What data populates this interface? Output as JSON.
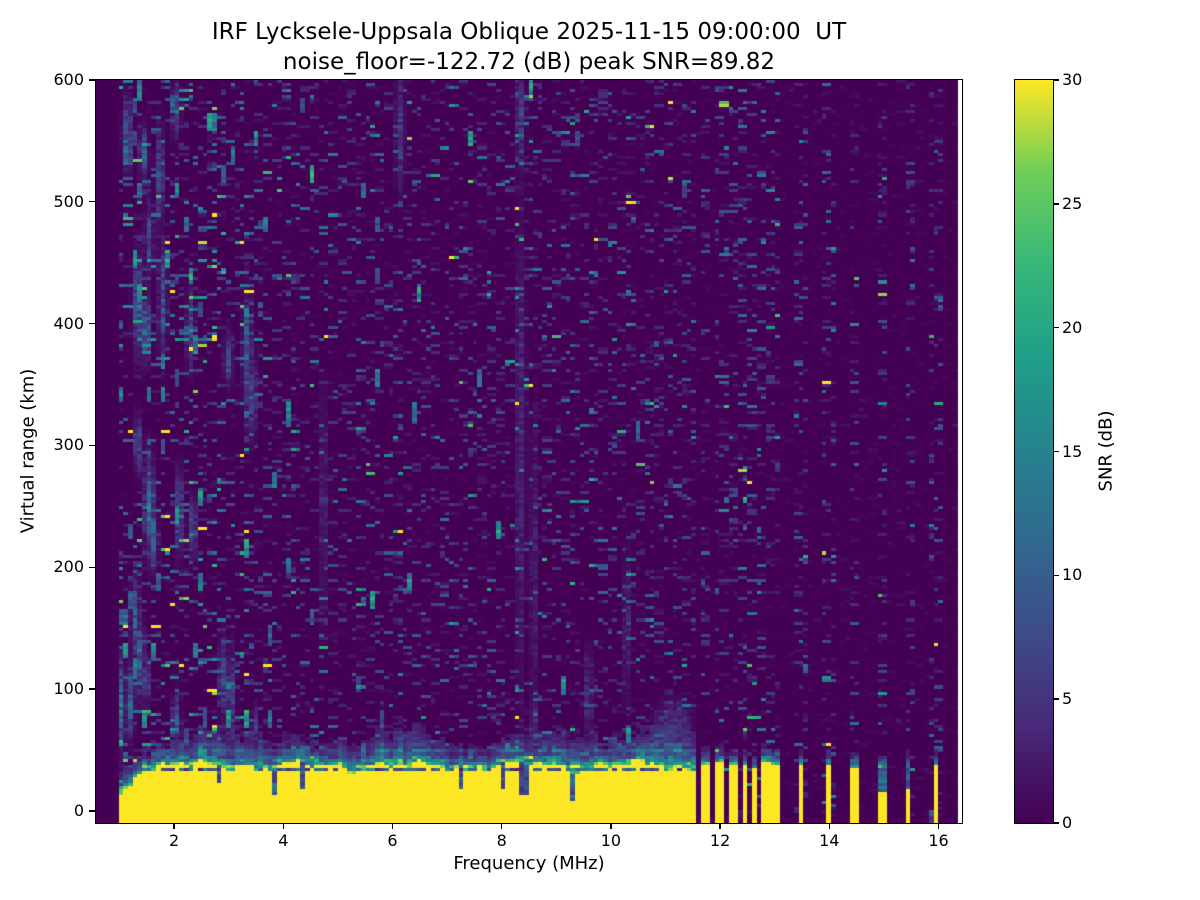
{
  "figure": {
    "title_line1": "IRF Lycksele-Uppsala Oblique 2025-11-15 09:00:00  UT",
    "title_line2": "noise_floor=-122.72 (dB) peak SNR=89.82",
    "background_color": "#ffffff",
    "text_color": "#000000"
  },
  "chart_data": {
    "type": "heatmap",
    "title": "IRF Lycksele-Uppsala Oblique 2025-11-15 09:00:00  UT",
    "subtitle": "noise_floor=-122.72 (dB) peak SNR=89.82",
    "station": "IRF Lycksele-Uppsala Oblique",
    "datetime_ut": "2025-11-15 09:00:00 UT",
    "noise_floor_db": -122.72,
    "peak_snr_db": 89.82,
    "xlabel": "Frequency (MHz)",
    "ylabel": "Virtual range (km)",
    "colorbar_label": "SNR (dB)",
    "xlim": [
      0.57,
      16.43
    ],
    "ylim": [
      -10,
      600
    ],
    "clim": [
      0,
      30
    ],
    "x_ticks": [
      2,
      4,
      6,
      8,
      10,
      12,
      14,
      16
    ],
    "y_ticks": [
      0,
      100,
      200,
      300,
      400,
      500,
      600
    ],
    "colorbar_ticks": [
      0,
      5,
      10,
      15,
      20,
      25,
      30
    ],
    "grid": false,
    "colormap": "viridis",
    "viridis_stops": [
      "#440154",
      "#482878",
      "#3e4a89",
      "#31688e",
      "#26828e",
      "#1f9e89",
      "#35b779",
      "#6dcd59",
      "#fde725"
    ],
    "features": {
      "min_freq_mhz": 1.0,
      "continuous_band_max_mhz": 11.58,
      "no_data_above_mhz": 16.32,
      "ground_band": {
        "saturated_value_db": 30,
        "top_km_base": 36,
        "transition_km": 13,
        "notch_km": 34.2,
        "low_freq_ramp_start_mhz": 1.0,
        "low_freq_ramp_top_km": 10
      },
      "stripes": [
        {
          "center_mhz": 11.75,
          "width_mhz": 0.17,
          "top_km": 38
        },
        {
          "center_mhz": 11.99,
          "width_mhz": 0.13,
          "top_km": 40
        },
        {
          "center_mhz": 12.22,
          "width_mhz": 0.15,
          "top_km": 37
        },
        {
          "center_mhz": 12.45,
          "width_mhz": 0.13,
          "top_km": 39
        },
        {
          "center_mhz": 12.64,
          "width_mhz": 0.08,
          "top_km": 34
        },
        {
          "center_mhz": 12.82,
          "width_mhz": 0.15,
          "top_km": 40
        },
        {
          "center_mhz": 13.04,
          "width_mhz": 0.15,
          "top_km": 38
        },
        {
          "center_mhz": 13.48,
          "width_mhz": 0.15,
          "top_km": 37
        },
        {
          "center_mhz": 14.0,
          "width_mhz": 0.15,
          "top_km": 36
        },
        {
          "center_mhz": 14.48,
          "width_mhz": 0.13,
          "top_km": 35
        },
        {
          "center_mhz": 14.97,
          "width_mhz": 0.11,
          "top_km": 36,
          "weak": true
        },
        {
          "center_mhz": 15.47,
          "width_mhz": 0.12,
          "top_km": 34
        },
        {
          "center_mhz": 15.97,
          "width_mhz": 0.13,
          "top_km": 36
        }
      ],
      "noise_columns": [
        {
          "f": 1.9,
          "s": 0.9
        },
        {
          "f": 2.3,
          "s": 0.7
        },
        {
          "f": 2.75,
          "s": 0.9
        },
        {
          "f": 3.3,
          "s": 0.9
        },
        {
          "f": 4.15,
          "s": 0.7
        },
        {
          "f": 4.75,
          "s": 0.8
        },
        {
          "f": 5.4,
          "s": 0.6
        },
        {
          "f": 6.15,
          "s": 1.0
        },
        {
          "f": 7.1,
          "s": 0.6
        },
        {
          "f": 7.45,
          "s": 0.7
        },
        {
          "f": 8.3,
          "s": 1.3
        },
        {
          "f": 8.55,
          "s": 1.1
        },
        {
          "f": 8.85,
          "s": 0.8
        },
        {
          "f": 9.3,
          "s": 0.6
        },
        {
          "f": 9.65,
          "s": 0.8
        },
        {
          "f": 10.05,
          "s": 0.6
        },
        {
          "f": 10.35,
          "s": 0.7
        },
        {
          "f": 10.75,
          "s": 0.6
        },
        {
          "f": 11.1,
          "s": 0.7
        }
      ],
      "echo_clusters": [
        {
          "f": 1.15,
          "r": 555,
          "sf": 0.05,
          "sr": 18,
          "a": 14
        },
        {
          "f": 1.45,
          "r": 540,
          "sf": 0.05,
          "sr": 12,
          "a": 12
        },
        {
          "f": 1.75,
          "r": 520,
          "sf": 0.05,
          "sr": 25,
          "a": 10
        },
        {
          "f": 2.05,
          "r": 575,
          "sf": 0.05,
          "sr": 15,
          "a": 9
        },
        {
          "f": 1.55,
          "r": 470,
          "sf": 0.05,
          "sr": 20,
          "a": 10
        },
        {
          "f": 1.35,
          "r": 415,
          "sf": 0.06,
          "sr": 25,
          "a": 13
        },
        {
          "f": 1.5,
          "r": 395,
          "sf": 0.05,
          "sr": 15,
          "a": 16
        },
        {
          "f": 1.8,
          "r": 420,
          "sf": 0.05,
          "sr": 30,
          "a": 11
        },
        {
          "f": 2.3,
          "r": 395,
          "sf": 0.05,
          "sr": 20,
          "a": 9
        },
        {
          "f": 3.35,
          "r": 375,
          "sf": 0.05,
          "sr": 30,
          "a": 12
        },
        {
          "f": 3.45,
          "r": 340,
          "sf": 0.05,
          "sr": 20,
          "a": 10
        },
        {
          "f": 1.35,
          "r": 300,
          "sf": 0.05,
          "sr": 15,
          "a": 10
        },
        {
          "f": 1.55,
          "r": 250,
          "sf": 0.06,
          "sr": 25,
          "a": 15
        },
        {
          "f": 1.62,
          "r": 225,
          "sf": 0.05,
          "sr": 15,
          "a": 14
        },
        {
          "f": 2.1,
          "r": 245,
          "sf": 0.05,
          "sr": 20,
          "a": 12
        },
        {
          "f": 2.35,
          "r": 232,
          "sf": 0.05,
          "sr": 15,
          "a": 10
        },
        {
          "f": 1.3,
          "r": 155,
          "sf": 0.05,
          "sr": 20,
          "a": 12
        },
        {
          "f": 1.38,
          "r": 130,
          "sf": 0.05,
          "sr": 15,
          "a": 14
        },
        {
          "f": 1.2,
          "r": 90,
          "sf": 0.05,
          "sr": 18,
          "a": 13
        },
        {
          "f": 1.5,
          "r": 105,
          "sf": 0.05,
          "sr": 12,
          "a": 10
        },
        {
          "f": 2.9,
          "r": 110,
          "sf": 0.05,
          "sr": 20,
          "a": 9
        },
        {
          "f": 3.0,
          "r": 370,
          "sf": 0.05,
          "sr": 15,
          "a": 8
        },
        {
          "f": 8.35,
          "r": 570,
          "sf": 0.05,
          "sr": 25,
          "a": 8
        },
        {
          "f": 8.35,
          "r": 300,
          "sf": 0.06,
          "sr": 120,
          "a": 4.5
        },
        {
          "f": 8.6,
          "r": 200,
          "sf": 0.05,
          "sr": 80,
          "a": 4
        },
        {
          "f": 6.15,
          "r": 560,
          "sf": 0.05,
          "sr": 30,
          "a": 7
        },
        {
          "f": 9.6,
          "r": 90,
          "sf": 0.05,
          "sr": 25,
          "a": 6
        },
        {
          "f": 4.75,
          "r": 250,
          "sf": 0.05,
          "sr": 60,
          "a": 4
        },
        {
          "f": 10.3,
          "r": 150,
          "sf": 0.05,
          "sr": 40,
          "a": 4
        },
        {
          "f": 11.15,
          "r": 70,
          "sf": 0.2,
          "sr": 12,
          "a": 7
        },
        {
          "f": 1.05,
          "r": 85,
          "sf": 0.04,
          "sr": 22,
          "a": 15
        },
        {
          "f": 1.35,
          "r": 120,
          "sf": 0.04,
          "sr": 18,
          "a": 12
        },
        {
          "f": 2.05,
          "r": 75,
          "sf": 0.05,
          "sr": 14,
          "a": 10
        },
        {
          "f": 3.05,
          "r": 90,
          "sf": 0.05,
          "sr": 25,
          "a": 10
        },
        {
          "f": 3.5,
          "r": 70,
          "sf": 0.04,
          "sr": 10,
          "a": 8
        },
        {
          "f": 8.6,
          "r": 72,
          "sf": 0.05,
          "sr": 12,
          "a": 7
        }
      ]
    }
  }
}
